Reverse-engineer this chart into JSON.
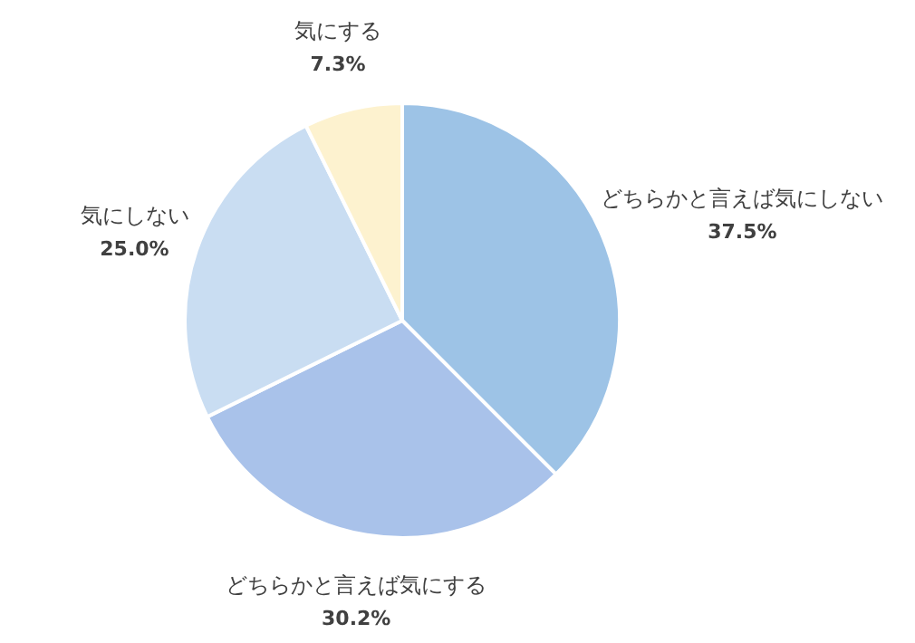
{
  "chart_data": {
    "type": "pie",
    "categories": [
      "どちらかと言えば気にしない",
      "どちらかと言えば気にする",
      "気にしない",
      "気にする"
    ],
    "values": [
      37.5,
      30.2,
      25.0,
      7.3
    ],
    "value_labels": [
      "37.5%",
      "30.2%",
      "25.0%",
      "7.3%"
    ],
    "colors": [
      "#9dc3e6",
      "#a9c2ea",
      "#c9ddf2",
      "#fdf2cf"
    ]
  }
}
